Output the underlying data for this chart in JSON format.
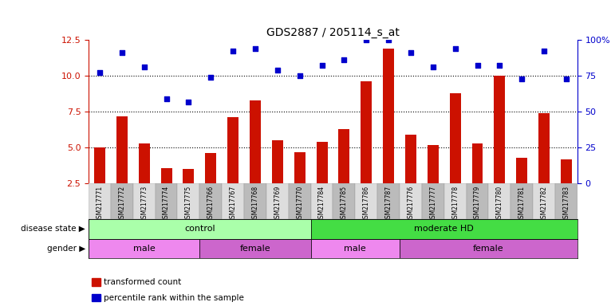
{
  "title": "GDS2887 / 205114_s_at",
  "samples": [
    "GSM217771",
    "GSM217772",
    "GSM217773",
    "GSM217774",
    "GSM217775",
    "GSM217766",
    "GSM217767",
    "GSM217768",
    "GSM217769",
    "GSM217770",
    "GSM217784",
    "GSM217785",
    "GSM217786",
    "GSM217787",
    "GSM217776",
    "GSM217777",
    "GSM217778",
    "GSM217779",
    "GSM217780",
    "GSM217781",
    "GSM217782",
    "GSM217783"
  ],
  "bar_values": [
    5.0,
    7.2,
    5.3,
    3.6,
    3.5,
    4.6,
    7.1,
    8.3,
    5.5,
    4.7,
    5.4,
    6.3,
    9.6,
    11.9,
    5.9,
    5.2,
    8.8,
    5.3,
    10.0,
    4.3,
    7.4,
    4.2
  ],
  "dot_values": [
    10.2,
    11.6,
    10.6,
    8.4,
    8.2,
    9.9,
    11.7,
    11.9,
    10.4,
    10.0,
    10.7,
    11.1,
    12.5,
    12.5,
    11.6,
    10.6,
    11.9,
    10.7,
    10.7,
    9.8,
    11.7,
    9.8
  ],
  "bar_color": "#cc1100",
  "dot_color": "#0000cc",
  "ylim_left": [
    2.5,
    12.5
  ],
  "yticks_left": [
    2.5,
    5.0,
    7.5,
    10.0,
    12.5
  ],
  "ytick_labels_right": [
    "0",
    "25",
    "50",
    "75",
    "100%"
  ],
  "hlines": [
    5.0,
    7.5,
    10.0
  ],
  "disease_state_groups": [
    {
      "label": "control",
      "start": 0,
      "end": 9,
      "color": "#aaffaa"
    },
    {
      "label": "moderate HD",
      "start": 10,
      "end": 21,
      "color": "#44dd44"
    }
  ],
  "gender_groups": [
    {
      "label": "male",
      "start": 0,
      "end": 4,
      "color": "#ee88ee"
    },
    {
      "label": "female",
      "start": 5,
      "end": 9,
      "color": "#cc66cc"
    },
    {
      "label": "male",
      "start": 10,
      "end": 13,
      "color": "#ee88ee"
    },
    {
      "label": "female",
      "start": 14,
      "end": 21,
      "color": "#cc66cc"
    }
  ],
  "legend_items": [
    {
      "label": "transformed count",
      "color": "#cc1100"
    },
    {
      "label": "percentile rank within the sample",
      "color": "#0000cc"
    }
  ],
  "bar_width": 0.5,
  "tick_box_colors": [
    "#dddddd",
    "#bbbbbb"
  ]
}
